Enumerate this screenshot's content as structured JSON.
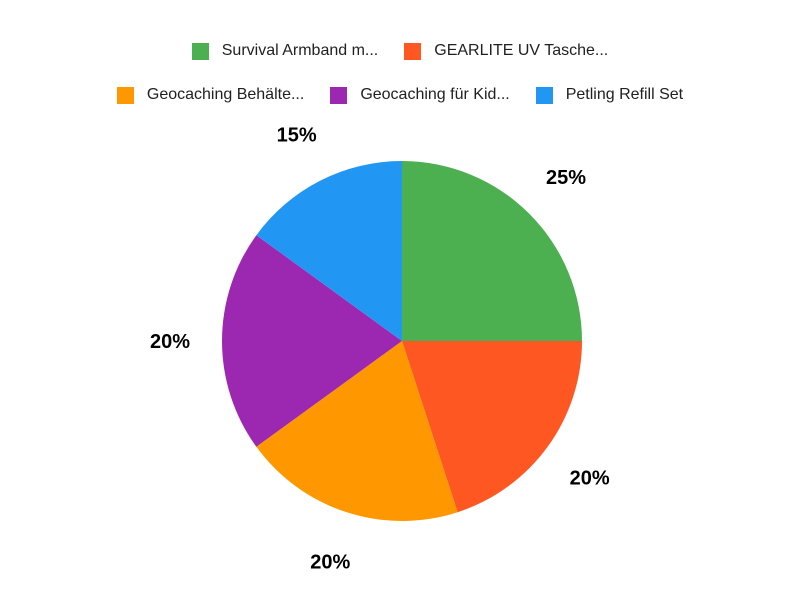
{
  "chart_data": {
    "type": "pie",
    "title": "",
    "background": "#FFFFFF",
    "direction": "clockwise",
    "start_angle_deg": 0,
    "legend_position": "top",
    "percent_label_color": "#000000",
    "legend_text_color": "#212121",
    "slices": [
      {
        "label": "Survival Armband m...",
        "value": 25,
        "percent_label": "25%",
        "color": "#4CAF50"
      },
      {
        "label": "GEARLITE UV Tasche...",
        "value": 20,
        "percent_label": "20%",
        "color": "#FF5722"
      },
      {
        "label": "Geocaching Behälte...",
        "value": 20,
        "percent_label": "20%",
        "color": "#FF9800"
      },
      {
        "label": "Geocaching für Kid...",
        "value": 20,
        "percent_label": "20%",
        "color": "#9C27B0"
      },
      {
        "label": "Petling Refill Set",
        "value": 15,
        "percent_label": "15%",
        "color": "#2196F3"
      }
    ],
    "legend_rows": [
      [
        0,
        1
      ],
      [
        2,
        3,
        4
      ]
    ]
  }
}
